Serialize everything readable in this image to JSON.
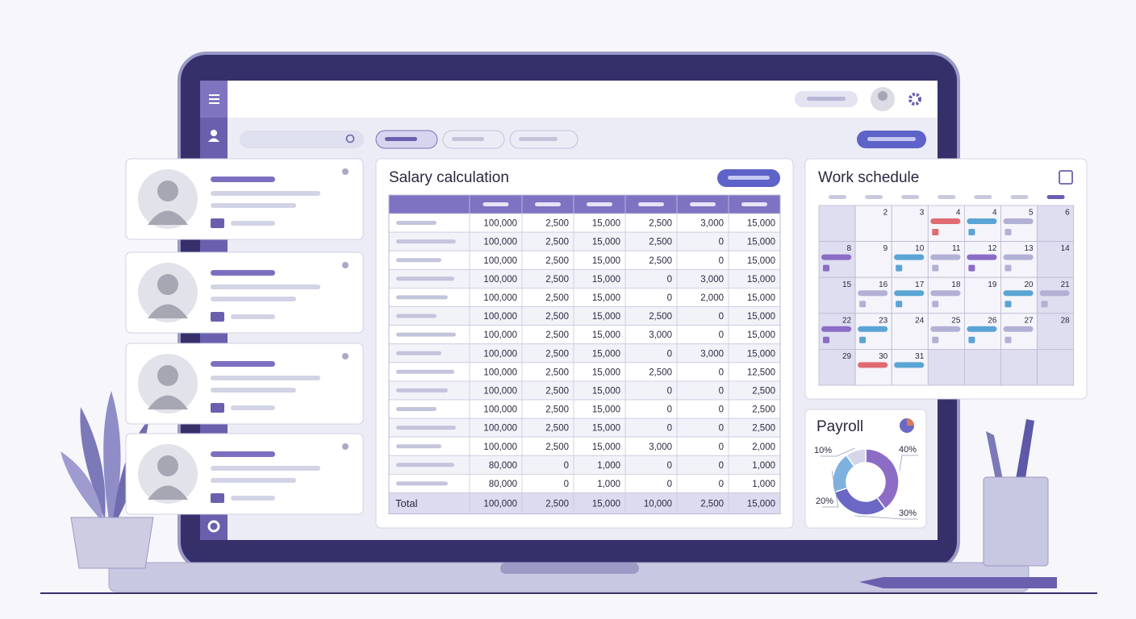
{
  "salary": {
    "title": "Salary calculation",
    "rows": [
      [
        "100,000",
        "2,500",
        "15,000",
        "2,500",
        "3,000",
        "15,000"
      ],
      [
        "100,000",
        "2,500",
        "15,000",
        "2,500",
        "0",
        "15,000"
      ],
      [
        "100,000",
        "2,500",
        "15,000",
        "2,500",
        "0",
        "15,000"
      ],
      [
        "100,000",
        "2,500",
        "15,000",
        "0",
        "3,000",
        "15,000"
      ],
      [
        "100,000",
        "2,500",
        "15,000",
        "0",
        "2,000",
        "15,000"
      ],
      [
        "100,000",
        "2,500",
        "15,000",
        "2,500",
        "0",
        "15,000"
      ],
      [
        "100,000",
        "2,500",
        "15,000",
        "3,000",
        "0",
        "15,000"
      ],
      [
        "100,000",
        "2,500",
        "15,000",
        "0",
        "3,000",
        "15,000"
      ],
      [
        "100,000",
        "2,500",
        "15,000",
        "2,500",
        "0",
        "12,500"
      ],
      [
        "100,000",
        "2,500",
        "15,000",
        "0",
        "0",
        "2,500"
      ],
      [
        "100,000",
        "2,500",
        "15,000",
        "0",
        "0",
        "2,500"
      ],
      [
        "100,000",
        "2,500",
        "15,000",
        "0",
        "0",
        "2,500"
      ],
      [
        "100,000",
        "2,500",
        "15,000",
        "3,000",
        "0",
        "2,000"
      ],
      [
        "80,000",
        "0",
        "1,000",
        "0",
        "0",
        "1,000"
      ],
      [
        "80,000",
        "0",
        "1,000",
        "0",
        "0",
        "1,000"
      ]
    ],
    "total": {
      "label": "Total",
      "values": [
        "100,000",
        "2,500",
        "15,000",
        "10,000",
        "2,500",
        "15,000"
      ]
    }
  },
  "schedule": {
    "title": "Work schedule",
    "days": [
      [
        null,
        2,
        3,
        4,
        4,
        5,
        6
      ],
      [
        8,
        9,
        10,
        11,
        12,
        13,
        14
      ],
      [
        15,
        16,
        17,
        18,
        19,
        20,
        21
      ],
      [
        22,
        23,
        24,
        25,
        26,
        27,
        28
      ],
      [
        29,
        30,
        31,
        null,
        null,
        null,
        null
      ]
    ]
  },
  "payroll": {
    "title": "Payroll",
    "values": [
      40,
      30,
      20,
      10
    ],
    "value_labels": [
      "40%",
      "30%",
      "20%",
      "10%"
    ],
    "colors": [
      "#8d6cc6",
      "#6b67c4",
      "#7fb1de",
      "#d5d7e8"
    ]
  }
}
